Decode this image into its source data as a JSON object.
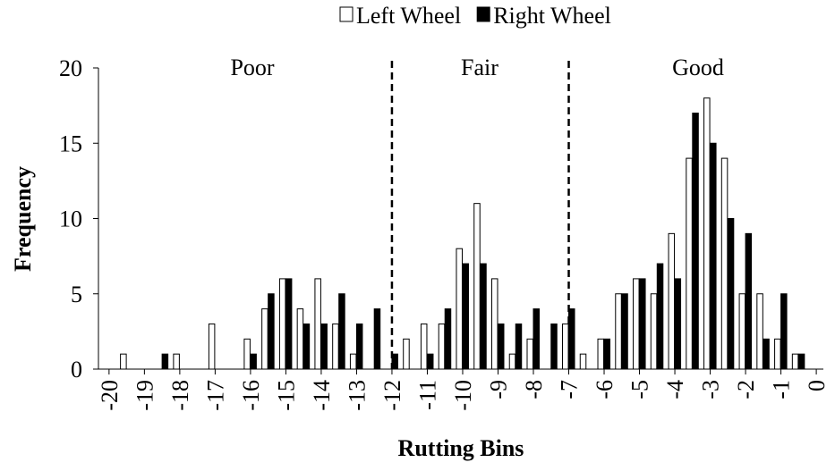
{
  "chart_data": {
    "type": "bar",
    "x_label": "Rutting Bins",
    "y_label": "Frequency",
    "x": [
      -19.5,
      -19,
      -18.5,
      -18,
      -17.5,
      -17,
      -16.5,
      -16,
      -15.5,
      -15,
      -14.5,
      -14,
      -13.5,
      -13,
      -12.5,
      -12,
      -11.5,
      -11,
      -10.5,
      -10,
      -9.5,
      -9,
      -8.5,
      -8,
      -7.5,
      -7,
      -6.5,
      -6,
      -5.5,
      -5,
      -4.5,
      -4,
      -3.5,
      -3,
      -2.5,
      -2,
      -1.5,
      -1,
      -0.5
    ],
    "series": [
      {
        "name": "Left Wheel",
        "color": "#ffffff",
        "values": [
          1,
          0,
          0,
          1,
          0,
          3,
          0,
          2,
          4,
          6,
          4,
          6,
          3,
          1,
          0,
          0,
          2,
          3,
          3,
          8,
          11,
          6,
          1,
          2,
          0,
          3,
          1,
          2,
          5,
          6,
          5,
          9,
          14,
          18,
          14,
          5,
          5,
          2,
          1
        ]
      },
      {
        "name": "Right Wheel",
        "color": "#000000",
        "values": [
          0,
          0,
          1,
          0,
          0,
          0,
          0,
          1,
          5,
          6,
          3,
          3,
          5,
          3,
          4,
          1,
          0,
          1,
          4,
          7,
          7,
          3,
          3,
          4,
          3,
          4,
          0,
          2,
          5,
          6,
          7,
          6,
          17,
          15,
          10,
          9,
          2,
          5,
          1
        ]
      }
    ],
    "xlim": [
      -20.3,
      0.2
    ],
    "xticks": [
      -20,
      -19,
      -18,
      -17,
      -16,
      -15,
      -14,
      -13,
      -12,
      -11,
      -10,
      -9,
      -8,
      -7,
      -6,
      -5,
      -4,
      -3,
      -2,
      -1,
      0
    ],
    "ylim": [
      0,
      20
    ],
    "yticks": [
      0,
      5,
      10,
      15,
      20
    ],
    "thresholds": [
      -12,
      -7
    ],
    "annotations": [
      "Poor",
      "Fair",
      "Good"
    ],
    "legend": "top"
  }
}
